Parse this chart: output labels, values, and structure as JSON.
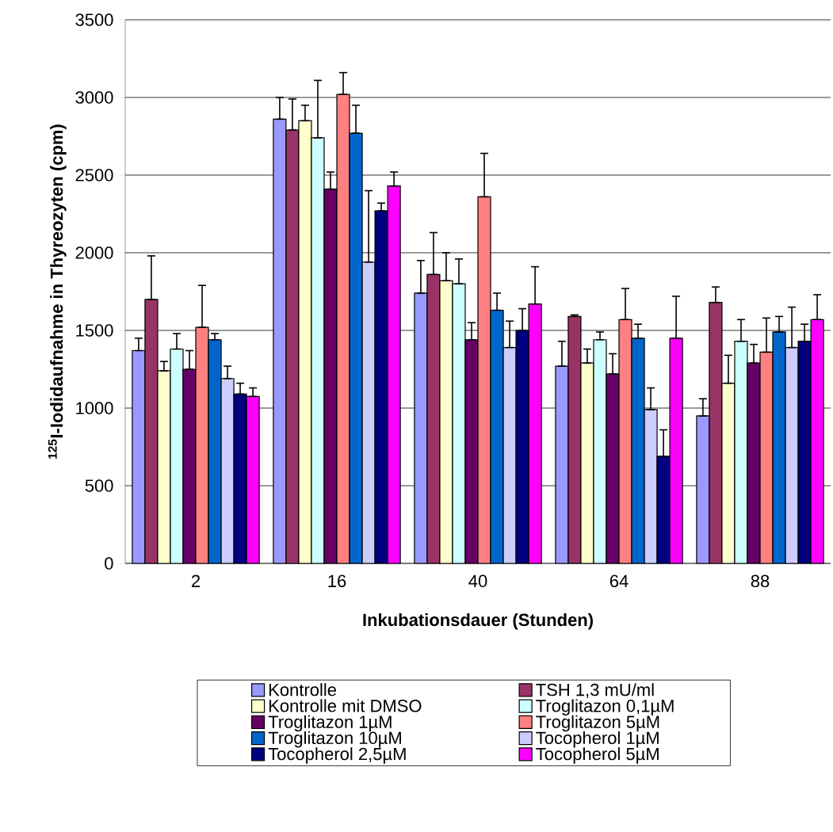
{
  "chart_data": {
    "type": "bar",
    "xlabel": "Inkubationsdauer (Stunden)",
    "ylabel": "$^{125}$I-Iodidaufnahme in Thyreozyten (cpm)",
    "categories": [
      "2",
      "16",
      "40",
      "64",
      "88"
    ],
    "ylim": [
      0,
      3500
    ],
    "yticks": [
      0,
      500,
      1000,
      1500,
      2000,
      2500,
      3000,
      3500
    ],
    "grid": "y",
    "legend": "bottom",
    "series": [
      {
        "name": "Kontrolle",
        "color": "#9999ff",
        "values": [
          1370,
          2860,
          1740,
          1270,
          950
        ],
        "errors": [
          [
            1370,
            1450
          ],
          [
            2860,
            3000
          ],
          [
            1740,
            1950
          ],
          [
            1270,
            1430
          ],
          [
            950,
            1060
          ]
        ]
      },
      {
        "name": "TSH 1,3 mU/ml",
        "color": "#993366",
        "values": [
          1700,
          2790,
          1860,
          1590,
          1680
        ],
        "errors": [
          [
            1700,
            1980
          ],
          [
            2790,
            2990
          ],
          [
            1860,
            2130
          ],
          [
            1590,
            1600
          ],
          [
            1680,
            1780
          ]
        ]
      },
      {
        "name": "Kontrolle mit DMSO",
        "color": "#ffffcc",
        "values": [
          1240,
          2850,
          1820,
          1290,
          1160
        ],
        "errors": [
          [
            1240,
            1300
          ],
          [
            2850,
            2950
          ],
          [
            1820,
            2000
          ],
          [
            1290,
            1380
          ],
          [
            1160,
            1340
          ]
        ]
      },
      {
        "name": "Troglitazon 0,1µM",
        "color": "#ccffff",
        "values": [
          1380,
          2740,
          1800,
          1440,
          1430
        ],
        "errors": [
          [
            1380,
            1480
          ],
          [
            2740,
            3110
          ],
          [
            1800,
            1960
          ],
          [
            1440,
            1490
          ],
          [
            1430,
            1570
          ]
        ]
      },
      {
        "name": "Troglitazon 1µM",
        "color": "#660066",
        "values": [
          1250,
          2410,
          1440,
          1220,
          1290
        ],
        "errors": [
          [
            1250,
            1370
          ],
          [
            2410,
            2520
          ],
          [
            1440,
            1550
          ],
          [
            1220,
            1350
          ],
          [
            1290,
            1410
          ]
        ]
      },
      {
        "name": "Troglitazon 5µM",
        "color": "#ff8080",
        "values": [
          1520,
          3020,
          2360,
          1570,
          1360
        ],
        "errors": [
          [
            1520,
            1790
          ],
          [
            3020,
            3160
          ],
          [
            2360,
            2640
          ],
          [
            1570,
            1770
          ],
          [
            1360,
            1580
          ]
        ]
      },
      {
        "name": "Troglitazon 10µM",
        "color": "#0066cc",
        "values": [
          1440,
          2770,
          1630,
          1450,
          1490
        ],
        "errors": [
          [
            1440,
            1480
          ],
          [
            2770,
            2950
          ],
          [
            1630,
            1740
          ],
          [
            1450,
            1540
          ],
          [
            1490,
            1590
          ]
        ]
      },
      {
        "name": "Tocopherol 1µM",
        "color": "#ccccff",
        "values": [
          1190,
          1940,
          1390,
          990,
          1390
        ],
        "errors": [
          [
            1190,
            1270
          ],
          [
            1940,
            2400
          ],
          [
            1390,
            1560
          ],
          [
            990,
            1130
          ],
          [
            1390,
            1650
          ]
        ]
      },
      {
        "name": "Tocopherol 2,5µM",
        "color": "#000080",
        "values": [
          1090,
          2270,
          1500,
          690,
          1430
        ],
        "errors": [
          [
            1090,
            1160
          ],
          [
            2270,
            2320
          ],
          [
            1500,
            1640
          ],
          [
            690,
            860
          ],
          [
            1430,
            1540
          ]
        ]
      },
      {
        "name": "Tocopherol 5µM",
        "color": "#ff00ff",
        "values": [
          1075,
          2430,
          1670,
          1450,
          1570
        ],
        "errors": [
          [
            1075,
            1130
          ],
          [
            2430,
            2520
          ],
          [
            1670,
            1910
          ],
          [
            1450,
            1720
          ],
          [
            1570,
            1730
          ]
        ]
      }
    ]
  }
}
